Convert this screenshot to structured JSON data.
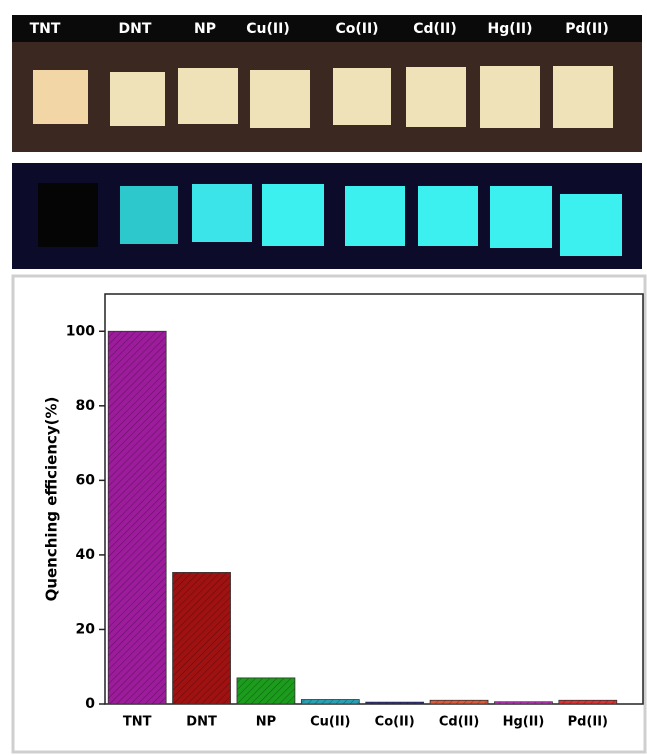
{
  "chart_data": {
    "type": "bar",
    "y_label": "Quenching efficiency(%)",
    "categories": [
      "TNT",
      "DNT",
      "NP",
      "Cu(II)",
      "Co(II)",
      "Cd(II)",
      "Hg(II)",
      "Pd(II)"
    ],
    "values": [
      100,
      35.3,
      7,
      1.2,
      0.5,
      1,
      0.6,
      1
    ],
    "colors": [
      "#9c1c9c",
      "#a01212",
      "#1c9c1c",
      "#2aa0b4",
      "#2424a4",
      "#e05a3a",
      "#c432c4",
      "#e03232"
    ],
    "ylim": [
      0,
      110
    ],
    "yticks": [
      0,
      20,
      40,
      60,
      80,
      100
    ]
  }
}
